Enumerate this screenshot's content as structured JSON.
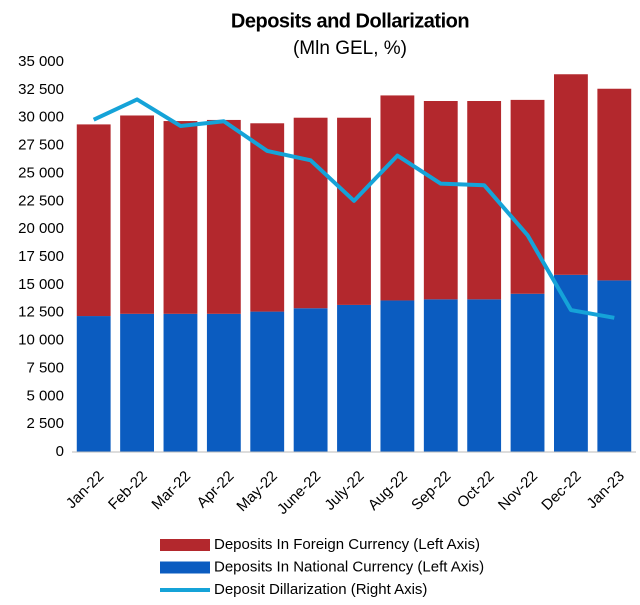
{
  "chart_data": {
    "type": "bar",
    "title": "Deposits and Dollarization",
    "subtitle": "(Mln GEL, %)",
    "categories": [
      "Jan-22",
      "Feb-22",
      "Mar-22",
      "Apr-22",
      "May-22",
      "June-22",
      "July-22",
      "Aug-22",
      "Sep-22",
      "Oct-22",
      "Nov-22",
      "Dec-22",
      "Jan-23"
    ],
    "series": [
      {
        "name": "Deposits In Foreign Currency (Left Axis)",
        "color": "#b3282d",
        "type": "bar",
        "stack": "bottom-second",
        "values": [
          17200,
          17800,
          17300,
          17400,
          16900,
          17100,
          16800,
          18400,
          17800,
          17800,
          17400,
          18000,
          17200
        ]
      },
      {
        "name": "Deposits In National Currency (Left Axis)",
        "color": "#0b5cc0",
        "type": "bar",
        "stack": "bottom-first",
        "values": [
          12200,
          12400,
          12400,
          12400,
          12600,
          12900,
          13200,
          13600,
          13700,
          13700,
          14200,
          15900,
          15400
        ]
      },
      {
        "name": "Deposit Dillarization (Right Axis)",
        "color": "#15a3d8",
        "type": "line",
        "axis": "y2",
        "values": [
          61.3,
          62.6,
          60.9,
          61.2,
          59.3,
          58.7,
          56.1,
          59.0,
          57.2,
          57.1,
          53.9,
          49.1,
          48.6
        ]
      }
    ],
    "ylim": [
      0,
      35000
    ],
    "yticks": [
      0,
      {
        "value": 2500,
        "label": "2 500"
      },
      {
        "value": 5000,
        "label": "5 000"
      },
      {
        "value": 7500,
        "label": "7 500"
      },
      {
        "value": 10000,
        "label": "10 000"
      },
      {
        "value": 12500,
        "label": "12 500"
      },
      {
        "value": 15000,
        "label": "15 000"
      },
      {
        "value": 17500,
        "label": "17 500"
      },
      {
        "value": 20000,
        "label": "20 000"
      },
      {
        "value": 22500,
        "label": "22 500"
      },
      {
        "value": 25000,
        "label": "25 000"
      },
      {
        "value": 27500,
        "label": "27 500"
      },
      {
        "value": 30000,
        "label": "30 000"
      },
      {
        "value": 32500,
        "label": "32 500"
      },
      {
        "value": 35000,
        "label": "35 000"
      }
    ],
    "y2lim": [
      40,
      65
    ],
    "grid": false
  }
}
